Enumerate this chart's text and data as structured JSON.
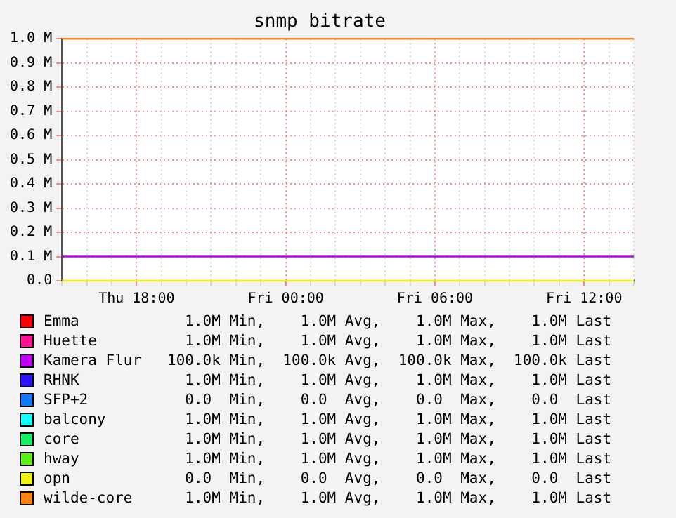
{
  "chart_data": {
    "type": "line",
    "title": "snmp bitrate",
    "categories": [
      null,
      null,
      null,
      "Thu 18:00",
      null,
      null,
      null,
      null,
      null,
      "Fri 00:00",
      null,
      null,
      null,
      null,
      null,
      "Fri 06:00",
      null,
      null,
      null,
      null,
      null,
      "Fri 12:00",
      null,
      null
    ],
    "ylim": [
      0,
      1000000
    ],
    "yticks": [
      {
        "value": 0,
        "label": "0.0"
      },
      {
        "value": 100000,
        "label": "0.1 M"
      },
      {
        "value": 200000,
        "label": "0.2 M"
      },
      {
        "value": 300000,
        "label": "0.3 M"
      },
      {
        "value": 400000,
        "label": "0.4 M"
      },
      {
        "value": 500000,
        "label": "0.5 M"
      },
      {
        "value": 600000,
        "label": "0.6 M"
      },
      {
        "value": 700000,
        "label": "0.7 M"
      },
      {
        "value": 800000,
        "label": "0.8 M"
      },
      {
        "value": 900000,
        "label": "0.9 M"
      },
      {
        "value": 1000000,
        "label": "1.0 M"
      }
    ],
    "grid": true,
    "legend": "bottom",
    "marker": "none",
    "line_style": "solid",
    "series": [
      {
        "name": "Emma",
        "color": "#ff0000",
        "values": [
          null,
          null,
          null,
          null,
          null,
          null,
          null,
          null,
          null,
          null,
          null,
          null,
          null,
          null,
          null,
          null,
          null,
          null,
          null,
          null,
          null,
          null,
          null,
          null
        ]
      },
      {
        "name": "Huette",
        "color": "#ff1493",
        "values": [
          null,
          null,
          null,
          null,
          null,
          null,
          null,
          null,
          null,
          null,
          null,
          null,
          null,
          null,
          null,
          null,
          null,
          null,
          null,
          null,
          null,
          null,
          null,
          null
        ]
      },
      {
        "name": "Kamera Flur",
        "color": "#c000ff",
        "values": [
          100000,
          100000,
          100000,
          100000,
          100000,
          100000,
          100000,
          100000,
          100000,
          100000,
          100000,
          100000,
          100000,
          100000,
          100000,
          100000,
          100000,
          100000,
          100000,
          100000,
          100000,
          100000,
          100000,
          100000
        ]
      },
      {
        "name": "RHNK",
        "color": "#2a14ff",
        "values": [
          null,
          null,
          null,
          null,
          null,
          null,
          null,
          null,
          null,
          null,
          null,
          null,
          null,
          null,
          null,
          null,
          null,
          null,
          null,
          null,
          null,
          null,
          null,
          null
        ]
      },
      {
        "name": "SFP+2",
        "color": "#1478ff",
        "values": [
          null,
          null,
          null,
          null,
          null,
          null,
          null,
          null,
          null,
          null,
          null,
          null,
          null,
          null,
          null,
          null,
          null,
          null,
          null,
          null,
          null,
          null,
          null,
          null
        ]
      },
      {
        "name": "balcony",
        "color": "#14ffff",
        "values": [
          null,
          null,
          null,
          null,
          null,
          null,
          null,
          null,
          null,
          null,
          null,
          null,
          null,
          null,
          null,
          null,
          null,
          null,
          null,
          null,
          null,
          null,
          null,
          null
        ]
      },
      {
        "name": "core",
        "color": "#14f064",
        "values": [
          null,
          null,
          null,
          null,
          null,
          null,
          null,
          null,
          null,
          null,
          null,
          null,
          null,
          null,
          null,
          null,
          null,
          null,
          null,
          null,
          null,
          null,
          null,
          null
        ]
      },
      {
        "name": "hway",
        "color": "#5af014",
        "values": [
          null,
          null,
          null,
          null,
          null,
          null,
          null,
          null,
          null,
          null,
          null,
          null,
          null,
          null,
          null,
          null,
          null,
          null,
          null,
          null,
          null,
          null,
          null,
          null
        ]
      },
      {
        "name": "opn",
        "color": "#f0f014",
        "values": [
          0,
          0,
          0,
          0,
          0,
          0,
          0,
          0,
          0,
          0,
          0,
          0,
          0,
          0,
          0,
          0,
          0,
          0,
          0,
          0,
          0,
          0,
          0,
          0
        ]
      },
      {
        "name": "wilde-core",
        "color": "#ff8214",
        "values": [
          1000000,
          1000000,
          1000000,
          1000000,
          1000000,
          1000000,
          1000000,
          1000000,
          1000000,
          1000000,
          1000000,
          1000000,
          1000000,
          1000000,
          1000000,
          1000000,
          1000000,
          1000000,
          1000000,
          1000000,
          1000000,
          1000000,
          1000000,
          1000000
        ]
      }
    ],
    "annotations": [
      "  1.0M Min,    1.0M Avg,    1.0M Max,    1.0M Last",
      "  1.0M Min,    1.0M Avg,    1.0M Max,    1.0M Last",
      "100.0k Min,  100.0k Avg,  100.0k Max,  100.0k Last",
      "  1.0M Min,    1.0M Avg,    1.0M Max,    1.0M Last",
      "  0.0  Min,    0.0  Avg,    0.0  Max,    0.0  Last",
      "  1.0M Min,    1.0M Avg,    1.0M Max,    1.0M Last",
      "  1.0M Min,    1.0M Avg,    1.0M Max,    1.0M Last",
      "  1.0M Min,    1.0M Avg,    1.0M Max,    1.0M Last",
      "  0.0  Min,    0.0  Avg,    0.0  Max,    0.0  Last",
      "  1.0M Min,    1.0M Avg,    1.0M Max,    1.0M Last"
    ]
  }
}
